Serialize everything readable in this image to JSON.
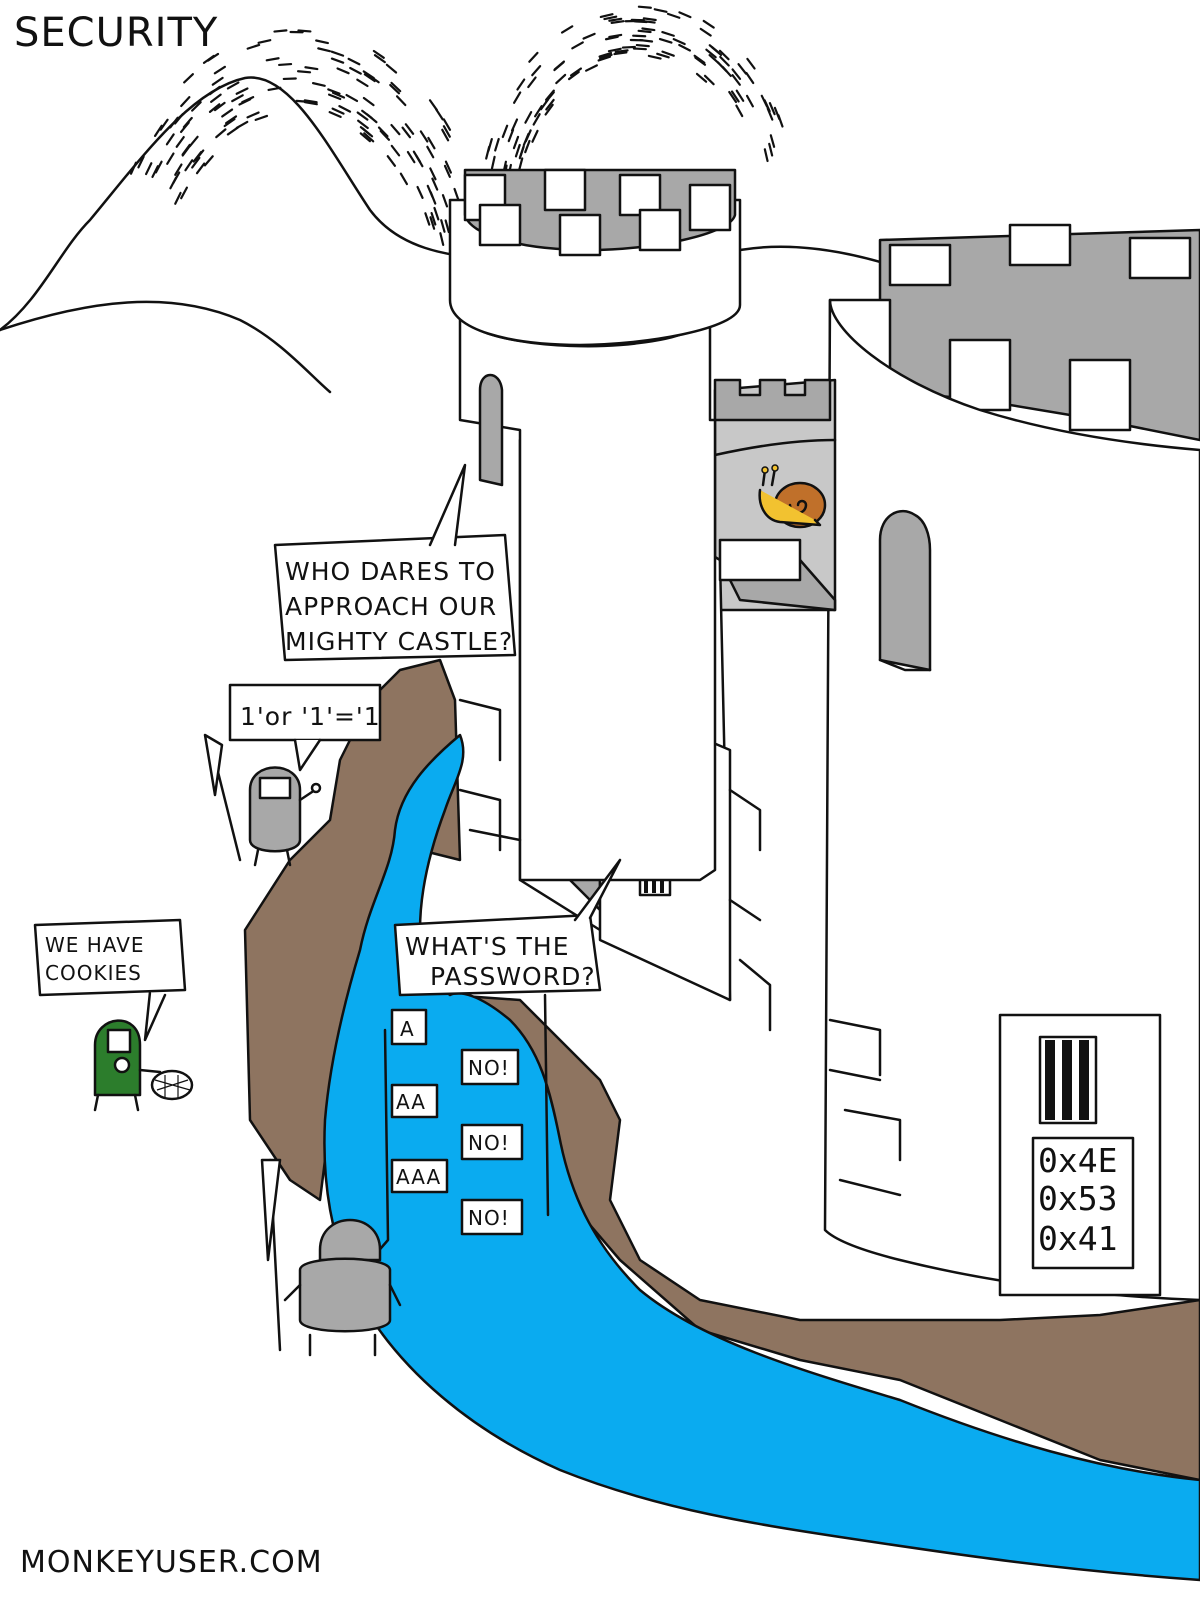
{
  "comic": {
    "title": "SECURITY",
    "credit": "MONKEYUSER.COM",
    "speech": {
      "tower_guard": [
        "WHO DARES TO",
        "APPROACH OUR",
        "MIGHTY CASTLE?"
      ],
      "sql_injection": "1'or '1'='1",
      "cookies": [
        "WE HAVE",
        "COOKIES"
      ],
      "gate_guard": [
        "WHAT'S THE",
        "PASSWORD?"
      ],
      "attempts": [
        "A",
        "AA",
        "AAA"
      ],
      "rejections": [
        "NO!",
        "NO!",
        "NO!"
      ]
    },
    "door_codes": [
      "0x4E",
      "0x53",
      "0x41"
    ],
    "colors": {
      "water": "#0aabf0",
      "dirt": "#8e7460",
      "stone_shade": "#a8a8a8",
      "knight_green": "#2c7d2c",
      "snail_yellow": "#f2c230",
      "snail_shell": "#c0702a",
      "ink": "#111111",
      "paper": "#ffffff"
    }
  }
}
